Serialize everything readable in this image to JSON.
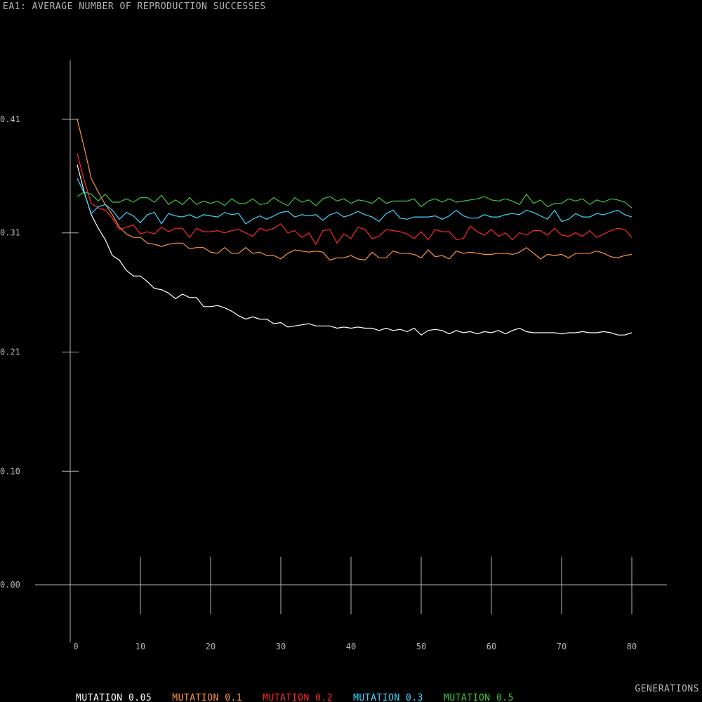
{
  "chart_data": {
    "type": "line",
    "title": "EA1: AVERAGE NUMBER OF REPRODUCTION SUCCESSES",
    "xlabel": "GENERATIONS",
    "ylabel": "",
    "xlim": [
      0,
      80
    ],
    "ylim": [
      0,
      0.41
    ],
    "x_ticks": [
      0,
      10,
      20,
      30,
      40,
      50,
      60,
      70,
      80
    ],
    "x_tick_labels": [
      "0",
      "10",
      "20",
      "30",
      "40",
      "50",
      "60",
      "70",
      "80"
    ],
    "y_ticks": [
      0.0,
      0.1,
      0.205,
      0.31,
      0.41
    ],
    "y_tick_labels": [
      "0.00",
      "0.10",
      "0.21",
      "0.31",
      "0.41"
    ],
    "grid": false,
    "legend_position": "bottom",
    "series": [
      {
        "name": "MUTATION 0.05",
        "color": "#ffffff",
        "x_start": 1,
        "values": [
          0.37,
          0.346,
          0.326,
          0.314,
          0.304,
          0.29,
          0.286,
          0.277,
          0.272,
          0.272,
          0.267,
          0.261,
          0.26,
          0.257,
          0.252,
          0.256,
          0.253,
          0.253,
          0.245,
          0.245,
          0.246,
          0.244,
          0.241,
          0.237,
          0.234,
          0.236,
          0.234,
          0.234,
          0.23,
          0.231,
          0.227,
          0.228,
          0.229,
          0.23,
          0.228,
          0.228,
          0.228,
          0.226,
          0.227,
          0.226,
          0.227,
          0.226,
          0.226,
          0.224,
          0.226,
          0.224,
          0.225,
          0.223,
          0.226,
          0.22,
          0.224,
          0.225,
          0.224,
          0.221,
          0.224,
          0.222,
          0.223,
          0.221,
          0.223,
          0.222,
          0.224,
          0.221,
          0.224,
          0.226,
          0.223,
          0.222,
          0.222,
          0.222,
          0.222,
          0.221,
          0.222,
          0.222,
          0.223,
          0.222,
          0.222,
          0.223,
          0.222,
          0.22,
          0.22,
          0.222
        ]
      },
      {
        "name": "MUTATION 0.1",
        "color": "#ff9640",
        "x_start": 1,
        "values": [
          0.41,
          0.385,
          0.358,
          0.346,
          0.335,
          0.326,
          0.315,
          0.309,
          0.306,
          0.306,
          0.301,
          0.3,
          0.298,
          0.3,
          0.301,
          0.301,
          0.296,
          0.297,
          0.297,
          0.293,
          0.292,
          0.297,
          0.292,
          0.292,
          0.297,
          0.292,
          0.293,
          0.29,
          0.29,
          0.287,
          0.292,
          0.295,
          0.294,
          0.293,
          0.294,
          0.293,
          0.286,
          0.288,
          0.288,
          0.29,
          0.287,
          0.286,
          0.293,
          0.288,
          0.288,
          0.294,
          0.292,
          0.292,
          0.291,
          0.288,
          0.295,
          0.289,
          0.29,
          0.287,
          0.294,
          0.292,
          0.293,
          0.292,
          0.291,
          0.291,
          0.292,
          0.292,
          0.291,
          0.293,
          0.297,
          0.292,
          0.287,
          0.291,
          0.29,
          0.291,
          0.288,
          0.292,
          0.292,
          0.292,
          0.294,
          0.292,
          0.289,
          0.288,
          0.29,
          0.291
        ]
      },
      {
        "name": "MUTATION 0.2",
        "color": "#ff2a2a",
        "x_start": 1,
        "values": [
          0.38,
          0.356,
          0.336,
          0.332,
          0.33,
          0.323,
          0.313,
          0.315,
          0.317,
          0.309,
          0.311,
          0.309,
          0.315,
          0.311,
          0.314,
          0.314,
          0.306,
          0.314,
          0.311,
          0.311,
          0.312,
          0.31,
          0.312,
          0.313,
          0.31,
          0.307,
          0.314,
          0.312,
          0.314,
          0.318,
          0.31,
          0.312,
          0.306,
          0.31,
          0.3,
          0.312,
          0.313,
          0.301,
          0.309,
          0.305,
          0.315,
          0.313,
          0.305,
          0.307,
          0.313,
          0.312,
          0.311,
          0.309,
          0.305,
          0.311,
          0.304,
          0.313,
          0.311,
          0.311,
          0.304,
          0.305,
          0.316,
          0.311,
          0.308,
          0.313,
          0.307,
          0.31,
          0.304,
          0.31,
          0.308,
          0.312,
          0.312,
          0.308,
          0.314,
          0.308,
          0.307,
          0.31,
          0.307,
          0.312,
          0.306,
          0.309,
          0.312,
          0.314,
          0.313,
          0.306
        ]
      },
      {
        "name": "MUTATION 0.3",
        "color": "#40d8ff",
        "x_start": 1,
        "values": [
          0.358,
          0.345,
          0.327,
          0.333,
          0.335,
          0.33,
          0.322,
          0.328,
          0.325,
          0.319,
          0.326,
          0.328,
          0.318,
          0.327,
          0.325,
          0.324,
          0.326,
          0.323,
          0.326,
          0.325,
          0.324,
          0.328,
          0.326,
          0.327,
          0.318,
          0.322,
          0.325,
          0.322,
          0.325,
          0.328,
          0.329,
          0.324,
          0.326,
          0.325,
          0.326,
          0.321,
          0.326,
          0.328,
          0.324,
          0.326,
          0.329,
          0.326,
          0.324,
          0.32,
          0.327,
          0.33,
          0.323,
          0.322,
          0.324,
          0.324,
          0.324,
          0.325,
          0.322,
          0.325,
          0.33,
          0.325,
          0.323,
          0.323,
          0.326,
          0.324,
          0.324,
          0.326,
          0.327,
          0.326,
          0.33,
          0.328,
          0.325,
          0.322,
          0.33,
          0.32,
          0.322,
          0.327,
          0.324,
          0.324,
          0.327,
          0.326,
          0.328,
          0.33,
          0.326,
          0.324
        ]
      },
      {
        "name": "MUTATION 0.5",
        "color": "#3ec83e",
        "x_start": 1,
        "values": [
          0.342,
          0.346,
          0.344,
          0.338,
          0.344,
          0.337,
          0.337,
          0.34,
          0.337,
          0.341,
          0.341,
          0.337,
          0.343,
          0.335,
          0.339,
          0.335,
          0.341,
          0.335,
          0.338,
          0.336,
          0.338,
          0.334,
          0.34,
          0.336,
          0.336,
          0.34,
          0.335,
          0.336,
          0.341,
          0.337,
          0.334,
          0.341,
          0.337,
          0.339,
          0.334,
          0.34,
          0.342,
          0.338,
          0.34,
          0.336,
          0.339,
          0.338,
          0.336,
          0.341,
          0.336,
          0.338,
          0.338,
          0.338,
          0.34,
          0.333,
          0.338,
          0.34,
          0.337,
          0.34,
          0.337,
          0.338,
          0.339,
          0.34,
          0.342,
          0.339,
          0.338,
          0.34,
          0.338,
          0.335,
          0.344,
          0.336,
          0.339,
          0.333,
          0.336,
          0.336,
          0.34,
          0.338,
          0.34,
          0.335,
          0.339,
          0.337,
          0.34,
          0.339,
          0.337,
          0.332
        ]
      }
    ]
  }
}
